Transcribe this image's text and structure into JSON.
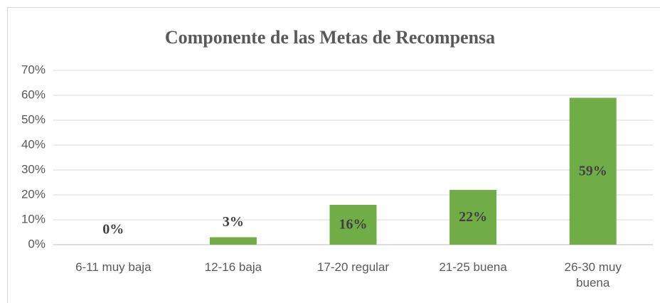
{
  "chart_data": {
    "type": "bar",
    "title": "Componente de las Metas de Recompensa",
    "categories": [
      "6-11 muy baja",
      "12-16 baja",
      "17-20 regular",
      "21-25 buena",
      "26-30 muy buena"
    ],
    "values": [
      0,
      3,
      16,
      22,
      59
    ],
    "value_labels": [
      "0%",
      "3%",
      "16%",
      "22%",
      "59%"
    ],
    "color": "#70ad47",
    "ylim": [
      0,
      70
    ],
    "yticks": [
      {
        "value": 0,
        "label": "0%"
      },
      {
        "value": 10,
        "label": "10%"
      },
      {
        "value": 20,
        "label": "20%"
      },
      {
        "value": 30,
        "label": "30%"
      },
      {
        "value": 40,
        "label": "40%"
      },
      {
        "value": 50,
        "label": "50%"
      },
      {
        "value": 60,
        "label": "60%"
      },
      {
        "value": 70,
        "label": "70%"
      }
    ],
    "grid": true
  }
}
